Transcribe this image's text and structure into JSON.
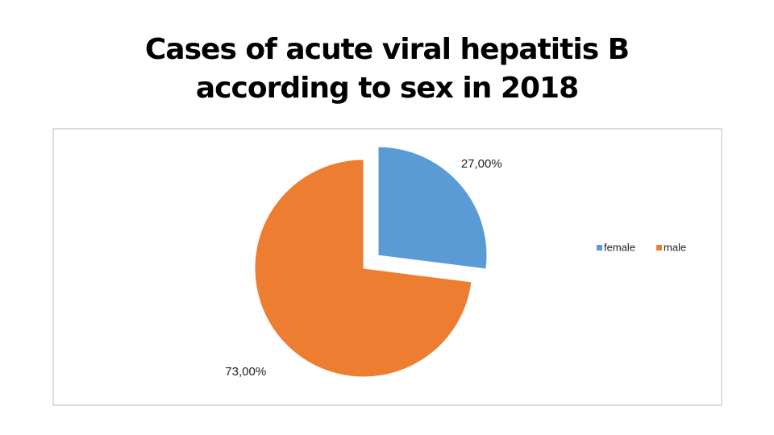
{
  "chart_data": {
    "type": "pie",
    "title": "Cases of acute viral hepatitis B according to sex in 2018",
    "categories": [
      "female",
      "male"
    ],
    "values": [
      27,
      73
    ],
    "value_labels": [
      "27,00%",
      "73,00%"
    ],
    "colors": [
      "#5b9bd5",
      "#ed7d31"
    ],
    "legend": "right"
  }
}
